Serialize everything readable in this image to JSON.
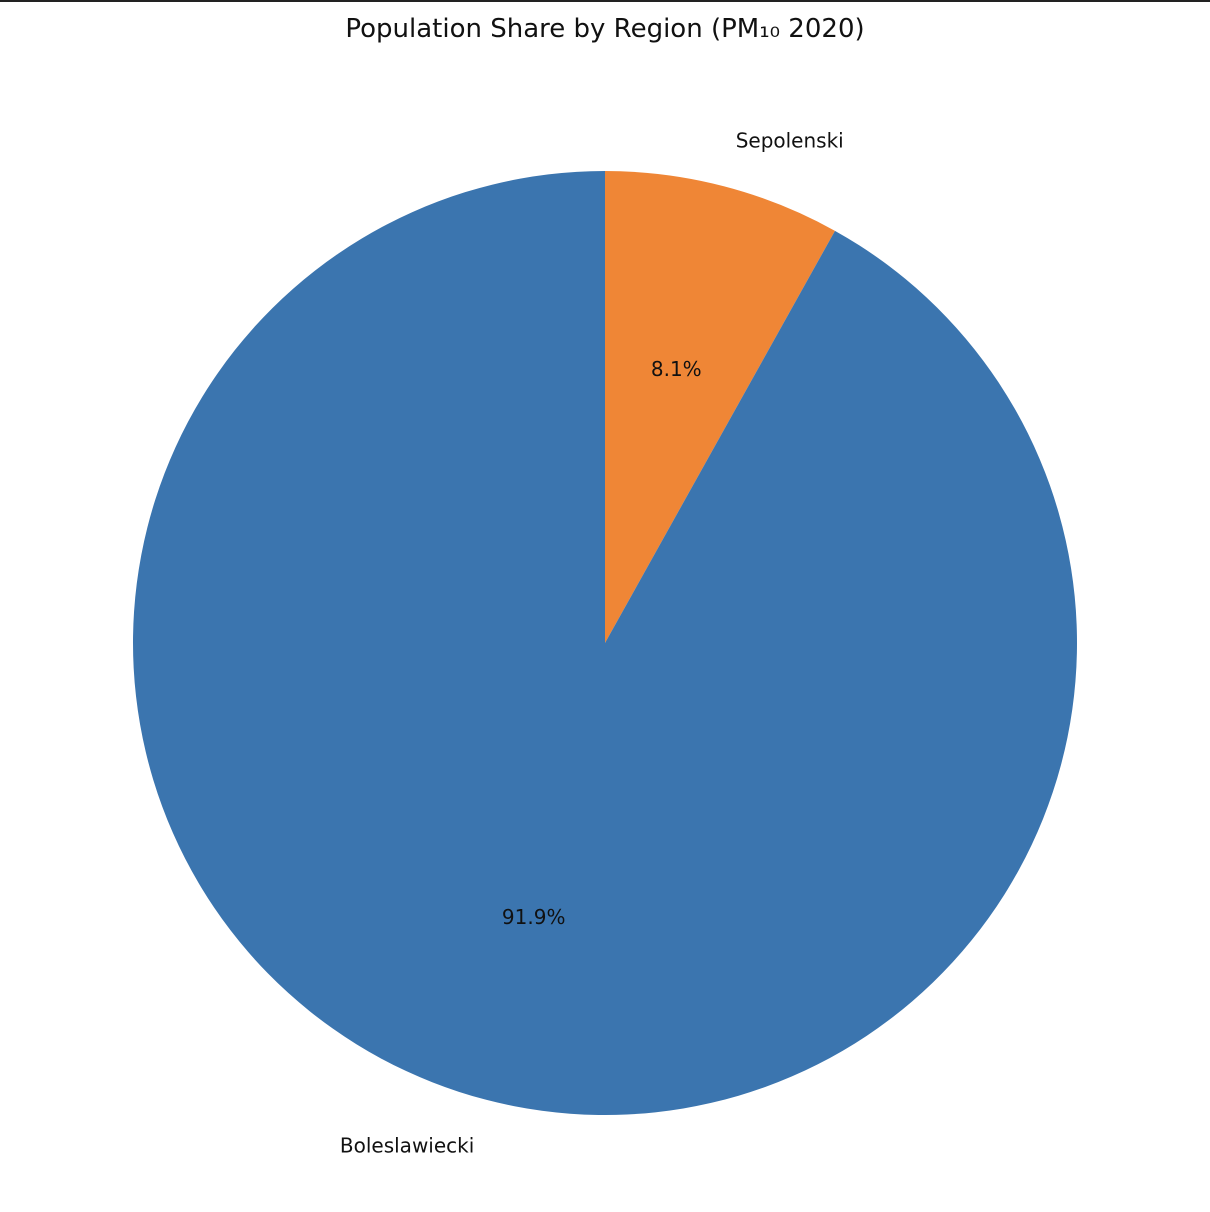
{
  "chart_data": {
    "type": "pie",
    "title": "Population Share by Region (PM₁₀ 2020)",
    "start_angle_deg": 90,
    "direction": "clockwise",
    "slices": [
      {
        "label": "Sepolenski",
        "value": 8.1,
        "pct_label": "8.1%",
        "color": "#ef8636"
      },
      {
        "label": "Boleslawiecki",
        "value": 91.9,
        "pct_label": "91.9%",
        "color": "#3b75af"
      }
    ]
  }
}
